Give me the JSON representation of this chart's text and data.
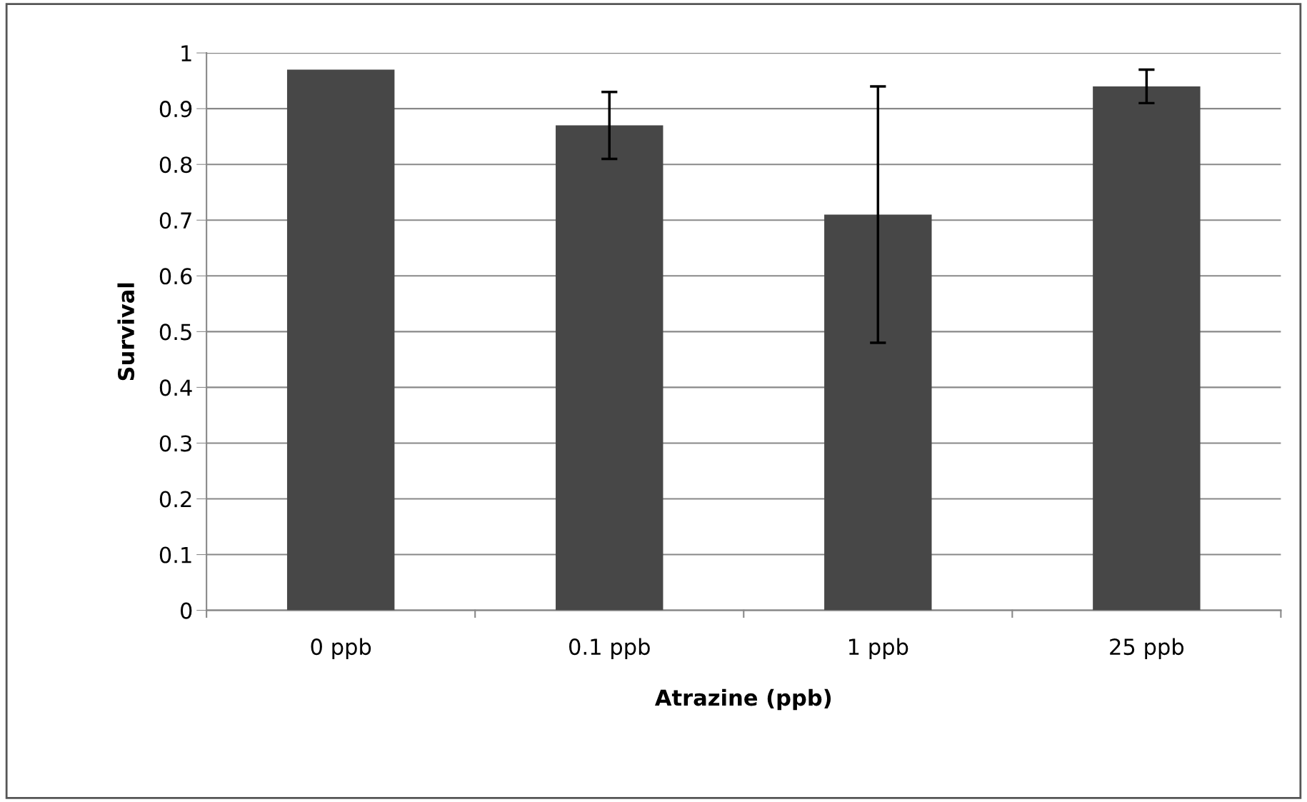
{
  "chart_data": {
    "type": "bar",
    "xlabel": "Atrazine (ppb)",
    "ylabel": "Survival",
    "categories": [
      "0 ppb",
      "0.1 ppb",
      "1 ppb",
      "25 ppb"
    ],
    "values": [
      0.97,
      0.87,
      0.71,
      0.94
    ],
    "errors": [
      null,
      0.06,
      0.23,
      0.03
    ],
    "color": "#474747",
    "ylim": [
      0,
      1
    ],
    "yticks": [
      0,
      0.1,
      0.2,
      0.3,
      0.4,
      0.5,
      0.6,
      0.7,
      0.8,
      0.9,
      1
    ],
    "grid": "y",
    "legend": false
  }
}
